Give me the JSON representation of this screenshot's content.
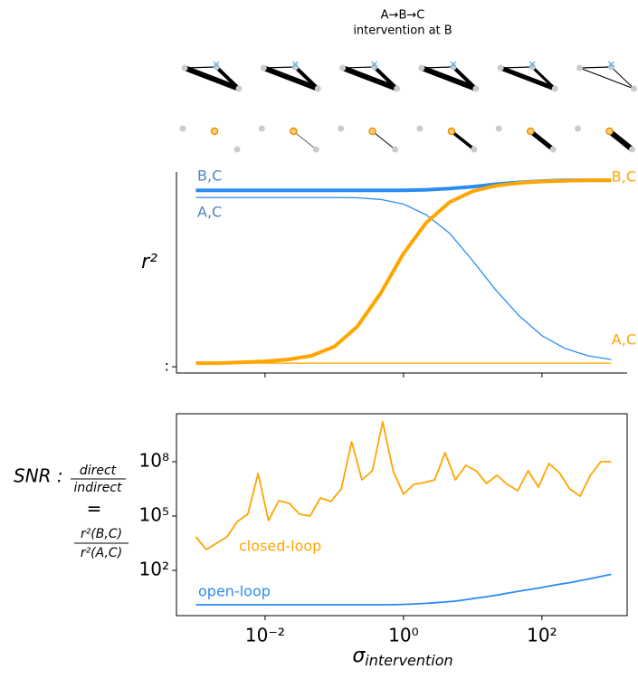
{
  "header": {
    "title_line1": "A→B→C",
    "title_line2": "intervention at B"
  },
  "chart_data": [
    {
      "type": "line",
      "y_label": "r²",
      "xscale": "log",
      "x": [
        0.001,
        0.00215,
        0.00464,
        0.01,
        0.0215,
        0.0464,
        0.1,
        0.215,
        0.464,
        1,
        2.15,
        4.64,
        10,
        21.5,
        46.4,
        100,
        215,
        464,
        1000
      ],
      "xlim": [
        0.000525,
        1700
      ],
      "xticks": [
        0.01,
        1,
        100
      ],
      "ylim": [
        -0.054,
        1.045
      ],
      "yticks": [
        {
          "value": -0.02,
          "label": ":"
        }
      ],
      "series": [
        {
          "name": "B,C",
          "color": "#2b8cf0",
          "label_color": "#4a86c5",
          "linewidth": 4,
          "values": [
            0.945,
            0.945,
            0.945,
            0.945,
            0.945,
            0.945,
            0.945,
            0.945,
            0.945,
            0.945,
            0.948,
            0.955,
            0.965,
            0.978,
            0.988,
            0.995,
            1,
            1,
            1
          ]
        },
        {
          "name": "A,C",
          "color": "#2b8cf0",
          "label_color": "#4a86c5",
          "linewidth": 1.3,
          "values": [
            0.906,
            0.906,
            0.906,
            0.906,
            0.906,
            0.906,
            0.906,
            0.904,
            0.895,
            0.87,
            0.81,
            0.71,
            0.56,
            0.4,
            0.26,
            0.15,
            0.08,
            0.04,
            0.02
          ]
        },
        {
          "name": "B,C",
          "color": "#ffa500",
          "label_color": "#ffa500",
          "linewidth": 4,
          "values": [
            0,
            0,
            0.005,
            0.01,
            0.02,
            0.04,
            0.09,
            0.2,
            0.38,
            0.6,
            0.77,
            0.88,
            0.94,
            0.97,
            0.985,
            0.993,
            0.997,
            1,
            1
          ]
        },
        {
          "name": "A,C",
          "color": "#ffa500",
          "label_color": "#ffa500",
          "linewidth": 1.3,
          "values": [
            0,
            0,
            0,
            0,
            0,
            0,
            0,
            0,
            0,
            0,
            0,
            0,
            0,
            0,
            0,
            0,
            0,
            0,
            0
          ]
        }
      ]
    },
    {
      "type": "line",
      "yscale": "log",
      "xscale": "log",
      "y_label": {
        "lead": "SNR :",
        "num": "direct",
        "den": "indirect",
        "eq": "=",
        "num2": "r²(B,C)",
        "den2": "r²(A,C)"
      },
      "x_label": {
        "symbol": "σ",
        "subscript": "intervention"
      },
      "x": [
        0.001,
        0.00141,
        0.002,
        0.00282,
        0.00398,
        0.00562,
        0.00794,
        0.0112,
        0.0158,
        0.0224,
        0.0316,
        0.0447,
        0.0631,
        0.0891,
        0.126,
        0.178,
        0.251,
        0.355,
        0.501,
        0.708,
        1,
        1.41,
        2,
        2.82,
        3.98,
        5.62,
        7.94,
        11.2,
        15.8,
        22.4,
        31.6,
        44.7,
        63.1,
        89.1,
        126,
        178,
        251,
        355,
        501,
        708,
        1000
      ],
      "xlim": [
        0.000525,
        1700
      ],
      "xticks": [
        {
          "value": 0.01,
          "label": "10⁻²"
        },
        {
          "value": 1,
          "label": "10⁰"
        },
        {
          "value": 100,
          "label": "10²"
        }
      ],
      "ylim": [
        0.316,
        44700000000
      ],
      "yticks": [
        {
          "value": 100,
          "label": "10²"
        },
        {
          "value": 100000,
          "label": "10⁵"
        },
        {
          "value": 100000000,
          "label": "10⁸"
        }
      ],
      "series": [
        {
          "name": "closed-loop",
          "color": "#ffa500",
          "values": [
            7080,
            1410,
            3160,
            7080,
            50100,
            126000,
            22400000,
            56200,
            708000,
            501000,
            126000,
            100000,
            1000000,
            631000,
            3160000,
            1260000000,
            10000000,
            31600000,
            15800000000,
            31600000,
            1580000,
            5620000,
            7080000,
            10000000,
            316000000,
            10000000,
            63100000,
            31600000,
            6310000,
            17800000,
            5620000,
            2510000,
            31600000,
            3980000,
            79400000,
            25100000,
            3160000,
            1260000,
            17800000,
            100000000,
            100000000
          ]
        },
        {
          "name": "open-loop",
          "color": "#2b8cf0",
          "values": [
            1.26,
            1.26,
            1.26,
            1.26,
            1.26,
            1.26,
            1.26,
            1.26,
            1.26,
            1.26,
            1.26,
            1.26,
            1.26,
            1.26,
            1.26,
            1.26,
            1.26,
            1.26,
            1.26,
            1.28,
            1.32,
            1.4,
            1.5,
            1.62,
            1.8,
            2,
            2.4,
            2.9,
            3.5,
            4.3,
            5.4,
            6.8,
            8.5,
            10.5,
            13.5,
            17,
            21,
            27,
            35,
            46,
            60
          ]
        }
      ]
    }
  ]
}
